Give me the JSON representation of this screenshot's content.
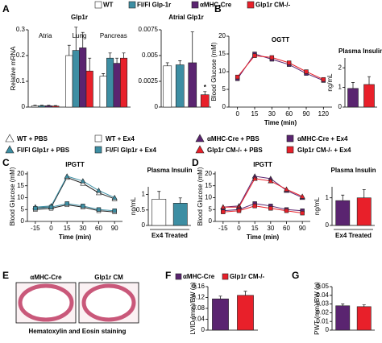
{
  "legend": {
    "items": [
      {
        "label": "WT",
        "color": "#ffffff"
      },
      {
        "label": "Fl/Fl Glp-1r",
        "color": "#3d8ea3"
      },
      {
        "label": "αMHC-Cre",
        "color": "#5a2470"
      },
      {
        "label": "Glp1r CM-/-",
        "color": "#e8202a"
      }
    ]
  },
  "treatment_legend": {
    "items": [
      {
        "label": "WT + PBS",
        "color": "#ffffff",
        "marker": "triangle"
      },
      {
        "label": "WT + Ex4",
        "color": "#ffffff",
        "marker": "square"
      },
      {
        "label": "Fl/Fl Glp1r + PBS",
        "color": "#3d8ea3",
        "marker": "triangle"
      },
      {
        "label": "Fl/Fl Glp1r + Ex4",
        "color": "#3d8ea3",
        "marker": "square"
      },
      {
        "label": "αMHC-Cre + PBS",
        "color": "#5a2470",
        "marker": "triangle"
      },
      {
        "label": "αMHC-Cre + Ex4",
        "color": "#5a2470",
        "marker": "square"
      },
      {
        "label": "Glp1r CM-/- + PBS",
        "color": "#e8202a",
        "marker": "triangle"
      },
      {
        "label": "Glp1r CM-/- + Ex4",
        "color": "#e8202a",
        "marker": "square"
      }
    ]
  },
  "panel_e": {
    "label": "E",
    "images": [
      "αMHC-Cre",
      "Glp1r CM"
    ],
    "caption": "Hematoxylin and Eosin staining"
  },
  "chart_data": [
    {
      "type": "bar",
      "panel": "A",
      "title": "Glp1r",
      "ylabel": "Relative mRNA",
      "x_labels": "top",
      "categories": [
        "Atria",
        "Lung",
        "Pancreas"
      ],
      "series": [
        {
          "color": "#ffffff",
          "values": [
            0.005,
            0.2,
            0.12
          ],
          "errors": [
            0.002,
            0.04,
            0.01
          ]
        },
        {
          "color": "#3d8ea3",
          "values": [
            0.005,
            0.22,
            0.19
          ],
          "errors": [
            0.002,
            0.09,
            0.02
          ]
        },
        {
          "color": "#5a2470",
          "values": [
            0.005,
            0.23,
            0.17
          ],
          "errors": [
            0.002,
            0.06,
            0.02
          ]
        },
        {
          "color": "#e8202a",
          "values": [
            0.004,
            0.14,
            0.19
          ],
          "errors": [
            0.002,
            0.05,
            0.02
          ]
        }
      ],
      "ylim": [
        0,
        0.3
      ],
      "yticks": [
        0,
        0.1,
        0.2,
        0.3
      ]
    },
    {
      "type": "bar",
      "title": "Atrial Glp1r",
      "annotation": "*",
      "values": [
        0.004,
        0.0041,
        0.0043,
        0.0012
      ],
      "errors": [
        0.0003,
        0.0004,
        0.003,
        0.0003
      ],
      "colors": [
        "#ffffff",
        "#3d8ea3",
        "#5a2470",
        "#e8202a"
      ],
      "ylim": [
        0,
        0.0075
      ],
      "yticks": [
        0,
        0.0025,
        0.005,
        0.0075
      ]
    },
    {
      "type": "line",
      "panel": "B",
      "title": "OGTT",
      "ylabel": "Blood Glucose (mM)",
      "xlabel": "Time (min)",
      "categories": [
        "0",
        "15",
        "30",
        "60",
        "90",
        "120"
      ],
      "series": [
        {
          "color": "#5a2470",
          "marker": "square",
          "values": [
            8,
            15,
            13.5,
            12,
            9.5,
            7.5
          ]
        },
        {
          "color": "#e8202a",
          "marker": "square",
          "values": [
            8.5,
            14.5,
            14,
            12.5,
            10,
            7.8
          ]
        }
      ],
      "ylim": [
        0,
        20
      ],
      "yticks": [
        0,
        5,
        10,
        15,
        20
      ]
    },
    {
      "type": "bar",
      "title": "Plasma Insulin",
      "ylabel": "ng/mL",
      "values": [
        0.95,
        1.15
      ],
      "errors": [
        0.3,
        0.4
      ],
      "colors": [
        "#5a2470",
        "#e8202a"
      ],
      "ylim": [
        0,
        2.5
      ],
      "yticks": [
        0,
        1,
        2
      ]
    },
    {
      "type": "line",
      "panel": "C",
      "title": "IPGTT",
      "ylabel": "Blood Glucose (mM)",
      "xlabel": "Time (min)",
      "categories": [
        "-15",
        "0",
        "15",
        "30",
        "60",
        "90"
      ],
      "series": [
        {
          "color": "#ffffff",
          "marker": "triangle",
          "values": [
            6,
            6,
            18.5,
            16,
            12,
            9.5
          ]
        },
        {
          "color": "#ffffff",
          "marker": "square",
          "values": [
            5,
            5.5,
            7,
            6,
            4.5,
            4
          ]
        },
        {
          "color": "#3d8ea3",
          "marker": "triangle",
          "values": [
            6,
            6.5,
            19,
            17,
            13,
            10
          ]
        },
        {
          "color": "#3d8ea3",
          "marker": "square",
          "values": [
            5.5,
            6,
            7.5,
            6.5,
            5,
            4.5
          ]
        }
      ],
      "ylim": [
        0,
        21
      ],
      "yticks": [
        0,
        5,
        10,
        15,
        20
      ]
    },
    {
      "type": "bar",
      "title": "Plasma Insulin",
      "ylabel": "ng/mL",
      "xlabel": "Ex4 Treated",
      "values": [
        0.85,
        0.72
      ],
      "errors": [
        0.25,
        0.17
      ],
      "colors": [
        "#ffffff",
        "#3d8ea3"
      ],
      "ylim": [
        0,
        1.25
      ],
      "yticks": [
        0,
        0.5,
        1
      ]
    },
    {
      "type": "line",
      "panel": "D",
      "title": "IPGTT",
      "ylabel": "Blood Glucose (mM)",
      "xlabel": "Time (min)",
      "categories": [
        "-15",
        "0",
        "15",
        "30",
        "60",
        "90"
      ],
      "series": [
        {
          "color": "#5a2470",
          "marker": "triangle",
          "values": [
            6,
            6.5,
            19,
            18,
            13,
            10
          ]
        },
        {
          "color": "#e8202a",
          "marker": "triangle",
          "values": [
            6,
            6,
            18,
            17,
            13.5,
            10.5
          ]
        },
        {
          "color": "#5a2470",
          "marker": "square",
          "values": [
            4.5,
            5,
            7.5,
            6.5,
            5,
            4.5
          ]
        },
        {
          "color": "#e8202a",
          "marker": "square",
          "values": [
            4,
            4.5,
            6.5,
            5.5,
            4.5,
            3.5
          ]
        }
      ],
      "ylim": [
        0,
        21
      ],
      "yticks": [
        0,
        5,
        10,
        15,
        20
      ]
    },
    {
      "type": "bar",
      "title": "Plasma Insulin",
      "ylabel": "ng/mL",
      "xlabel": "Ex4 Treated",
      "values": [
        0.9,
        1.0
      ],
      "errors": [
        0.2,
        0.3
      ],
      "colors": [
        "#5a2470",
        "#e8202a"
      ],
      "ylim": [
        0,
        1.4
      ],
      "yticks": [
        0,
        1
      ]
    },
    {
      "type": "bar",
      "panel": "F",
      "ylabel": "LVID (mm)/BW (g)",
      "legend": [
        {
          "label": "αMHC-Cre",
          "color": "#5a2470"
        },
        {
          "label": "Glp1r CM-/-",
          "color": "#e8202a"
        }
      ],
      "values": [
        0.115,
        0.128
      ],
      "errors": [
        0.01,
        0.015
      ],
      "colors": [
        "#5a2470",
        "#e8202a"
      ],
      "ylim": [
        0,
        0.16
      ],
      "yticks": [
        0,
        0.04,
        0.08,
        0.12,
        0.16
      ]
    },
    {
      "type": "bar",
      "panel": "G",
      "ylabel": "PWT (mm)/BW (g)",
      "values": [
        0.028,
        0.027
      ],
      "errors": [
        0.002,
        0.002
      ],
      "colors": [
        "#5a2470",
        "#e8202a"
      ],
      "ylim": [
        0,
        0.05
      ],
      "yticks": [
        0,
        0.01,
        0.02,
        0.03,
        0.04,
        0.05
      ]
    }
  ]
}
